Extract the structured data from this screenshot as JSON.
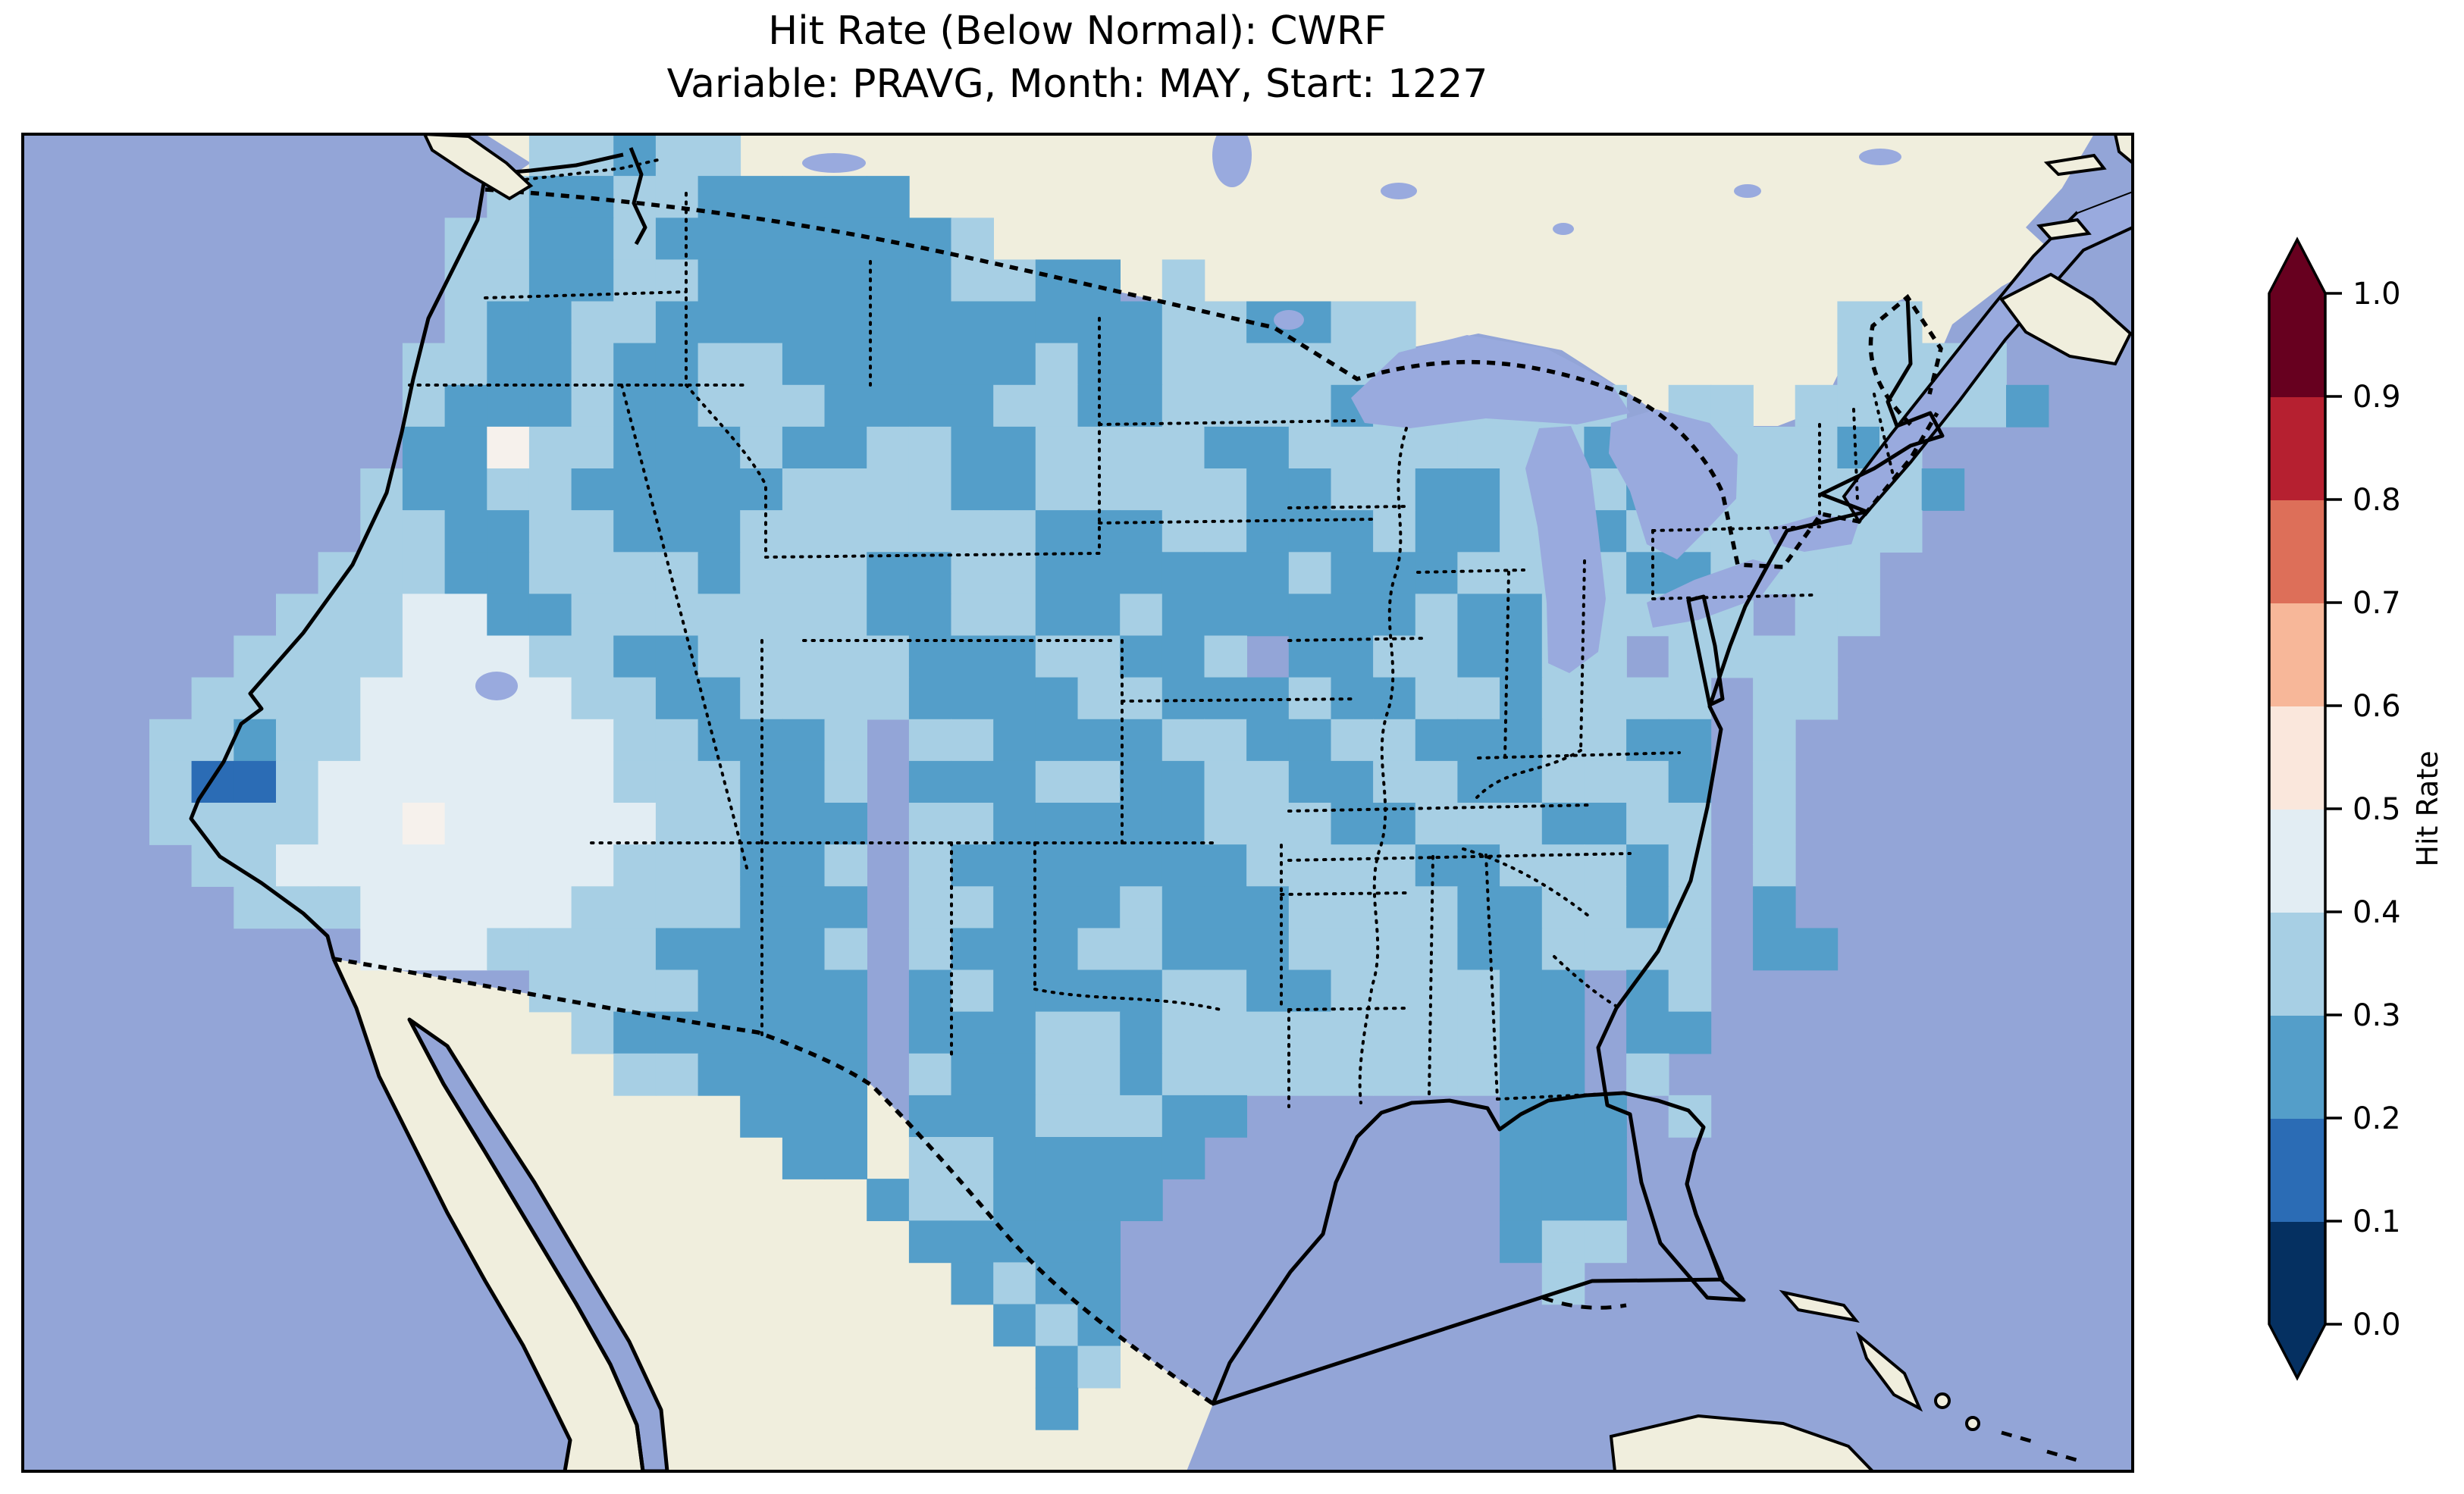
{
  "title": {
    "line1": "Hit Rate (Below Normal): CWRF",
    "line2": "Variable: PRAVG, Month: MAY, Start: 1227"
  },
  "colorbar": {
    "label": "Hit Rate",
    "ticks": [
      "0.0",
      "0.1",
      "0.2",
      "0.3",
      "0.4",
      "0.5",
      "0.6",
      "0.7",
      "0.8",
      "0.9",
      "1.0"
    ],
    "extend": "both",
    "bins": [
      {
        "range": "0.0-0.1",
        "color": "#053061"
      },
      {
        "range": "0.1-0.2",
        "color": "#2b6cb5"
      },
      {
        "range": "0.2-0.3",
        "color": "#549ec9"
      },
      {
        "range": "0.3-0.4",
        "color": "#a7cfe4"
      },
      {
        "range": "0.4-0.5",
        "color": "#e2edf3"
      },
      {
        "range": "0.5-0.6",
        "color": "#fae7dc"
      },
      {
        "range": "0.6-0.7",
        "color": "#f7b799"
      },
      {
        "range": "0.7-0.8",
        "color": "#dd6f59"
      },
      {
        "range": "0.8-0.9",
        "color": "#b62030"
      },
      {
        "range": "0.9-1.0",
        "color": "#67001f"
      }
    ]
  },
  "map": {
    "region": "Contiguous United States",
    "ocean_color": "#93a5d7",
    "land_color": "#f0eedd",
    "lake_color": "#99aade",
    "coast_color": "#000000",
    "grid_legend": {
      "1": "#2b6cb5",
      "2": "#549ec9",
      "3": "#a7cfe4",
      "4": "#e2edf3",
      "5": "#f6f1ec"
    },
    "grid_rows": [
      "............33233.................................",
      "...........3223322222.............................",
      "..........3322322222223...........................",
      "..........3322332222223322 3......................",
      "..........32233222222222222332233..........33.....",
      ".........332232233222222322333333..........3333...",
      ".........32223223332222332233332333333 33.333332..",
      ".........225332223223322333322333333323333323.....",
      "........32233222223333223333322332233323333332....",
      "........3322332223333333222332223223223333333.....",
      ".......3332233332333223322222232223333223333......",
      "......33344223333333223322322222232233333 33......",
      ".....333344433223333322233223 22332233 3333.......",
      "....333344444332233332222332223223323333 33.......",
      "...33233444444332223 3322223322332223322 3........",
      "...31134444444333223 2223322332233223332 3........",
      "...33334454444433222 3322222333223332233 3........",
      "....3344444444333223 3222222233332233323 3........",
      ".....333444443333222 3322232223333223323 2........",
      "........444333322223 3222332223333223333 22.......",
      "............33332222 2322223322333322 23..........",
      ".............3222222 2223323333333322 22..........",
      "..............332222 3223323333333322 3...........",
      ".................222 22233322......222 3..........",
      "..................22 3322222.......222............",
      "....................2332222........222............",
      ".....................22222.........233............",
      "......................2322..........3.............",
      ".......................232........................",
      "........................23........................",
      "........................2.........................",
      ".................................................."
    ]
  },
  "chart_data": {
    "type": "heatmap",
    "title": "Hit Rate (Below Normal): CWRF",
    "subtitle": "Variable: PRAVG, Month: MAY, Start: 1227",
    "value_label": "Hit Rate",
    "value_range": [
      0.0,
      1.0
    ],
    "colorbar_tick_step": 0.1,
    "dominant_bins": [
      "0.2-0.3",
      "0.3-0.4",
      "0.4-0.5"
    ],
    "notes": "Gridded hit-rate field over CONUS; darkest (0.1-0.2) cell in southern Nevada; palest (0.4-0.6) region over Great Basin / Four Corners; 0.2-0.3 blobs over Pacific NW, Montana, Dakotas, central Texas, Gulf coast, Midwest, Georgia and Florida peninsula."
  }
}
